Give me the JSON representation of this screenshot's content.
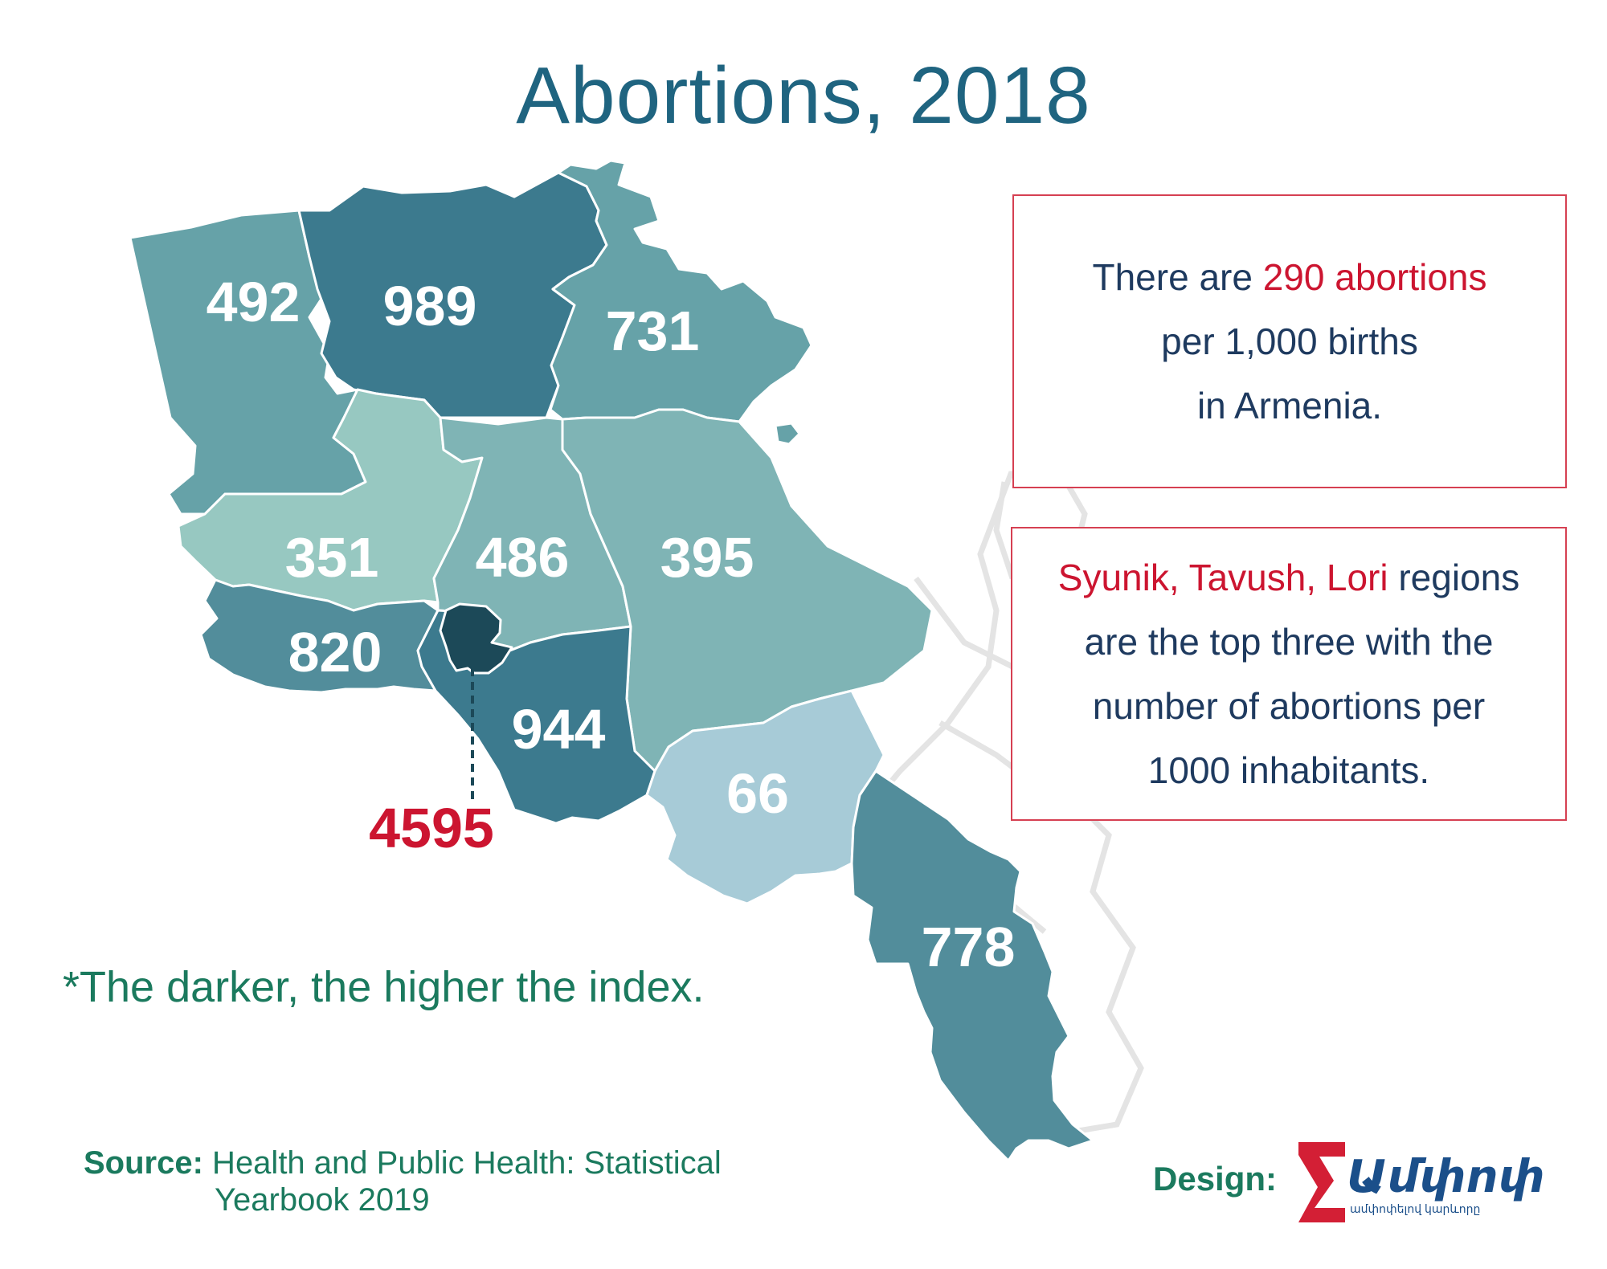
{
  "title": "Abortions, 2018",
  "info_box_1": {
    "pre": "There are ",
    "highlight": "290 abortions",
    "line2": "per 1,000 births",
    "line3": "in Armenia."
  },
  "info_box_2": {
    "highlight": "Syunik, Tavush, Lori",
    "post": " regions",
    "line2": "are the top three with the",
    "line3": "number of abortions per",
    "line4": "1000 inhabitants."
  },
  "note": "*The darker, the higher the index.",
  "source": {
    "label": "Source:",
    "text_line1": " Health and Public Health: Statistical",
    "text_line2": "Yearbook 2019"
  },
  "design": {
    "label": "Design:",
    "logo_text": "Ամփոփ",
    "logo_subtext": "ամփոփելով կարևորը"
  },
  "regions": [
    {
      "name": "Shirak",
      "value": "492",
      "color": "#66a2a8"
    },
    {
      "name": "Lori",
      "value": "989",
      "color": "#3c7a8e"
    },
    {
      "name": "Tavush",
      "value": "731",
      "color": "#66a2a8"
    },
    {
      "name": "Aragatsotn",
      "value": "351",
      "color": "#97c8c1"
    },
    {
      "name": "Kotayk",
      "value": "486",
      "color": "#7fb4b5"
    },
    {
      "name": "Gegharkunik",
      "value": "395",
      "color": "#7fb4b5"
    },
    {
      "name": "Armavir",
      "value": "820",
      "color": "#528d9b"
    },
    {
      "name": "Ararat",
      "value": "944",
      "color": "#3c7a8e"
    },
    {
      "name": "Vayots Dzor",
      "value": "66",
      "color": "#a7cbd7"
    },
    {
      "name": "Syunik",
      "value": "778",
      "color": "#528d9b"
    },
    {
      "name": "Yerevan",
      "value": "4595",
      "color": "#1c4958"
    }
  ],
  "colors": {
    "title": "#1f6480",
    "highlight": "#cc1530",
    "box_border": "#d64052",
    "box_text": "#1e3a5f",
    "note_text": "#1b7a5e",
    "background_map": "#e4e4e4"
  }
}
